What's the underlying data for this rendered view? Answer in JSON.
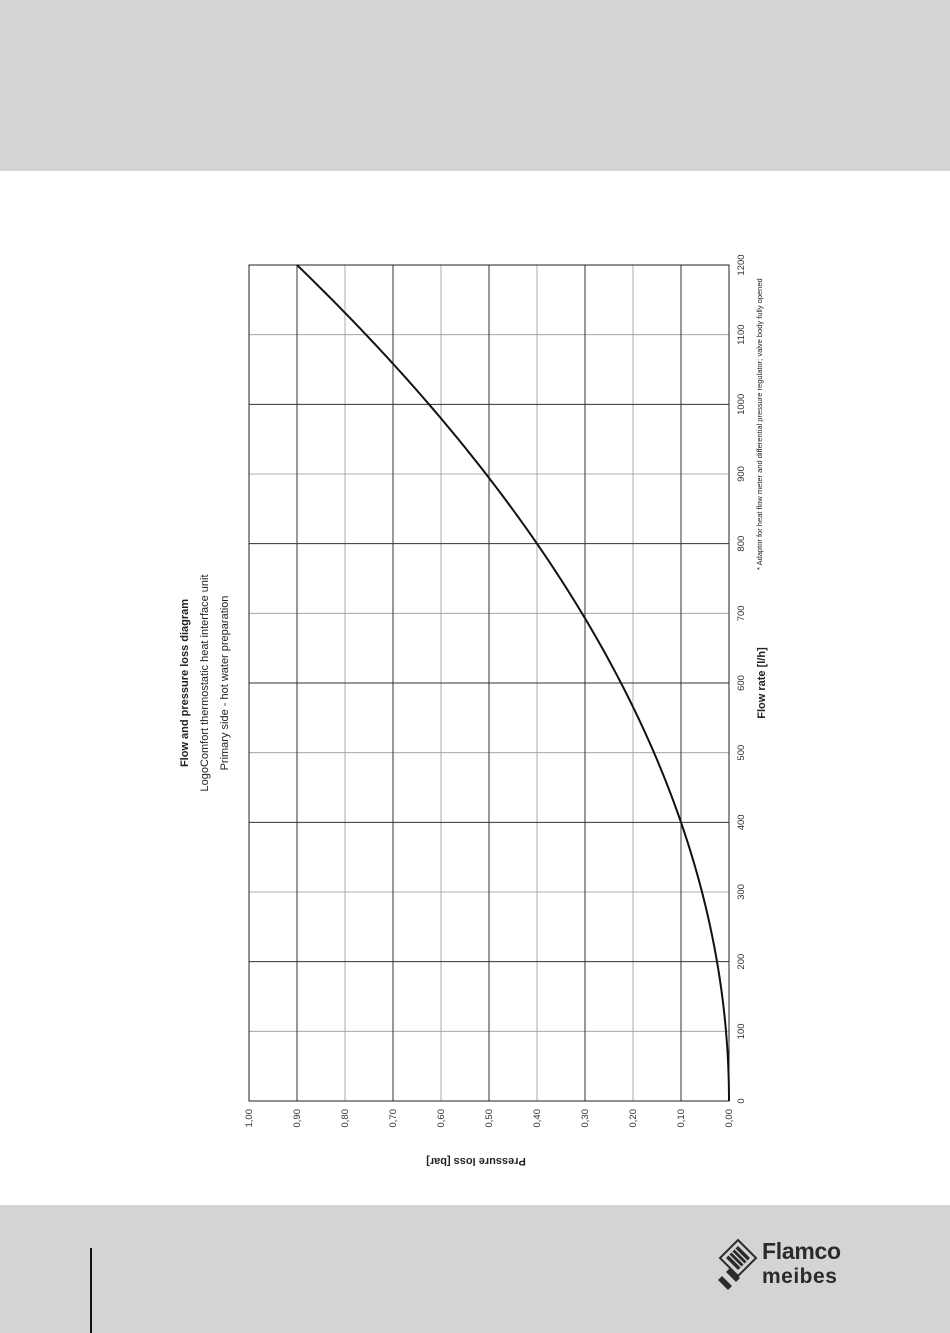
{
  "chart_data": {
    "type": "line",
    "title": "Flow and pressure loss diagram",
    "subtitle_lines": [
      "LogoComfort thermostatic heat interface unit",
      "Primary side - hot water preparation"
    ],
    "xlabel": "Flow rate [l/h]",
    "ylabel": "Pressure loss [bar]",
    "xlim": [
      0,
      1200
    ],
    "ylim": [
      0,
      1.0
    ],
    "x_ticks": [
      "0",
      "100",
      "200",
      "300",
      "400",
      "500",
      "600",
      "700",
      "800",
      "900",
      "1000",
      "1100",
      "1200"
    ],
    "y_ticks": [
      "0,00",
      "0,10",
      "0,20",
      "0,30",
      "0,40",
      "0,50",
      "0,60",
      "0,70",
      "0,80",
      "0,90",
      "1,00"
    ],
    "grid": true,
    "orientation": "rotated-90-counterclockwise",
    "footnote": "* Adaptor for heat flow meter and differential pressure regulator; valve body fully opened",
    "series": [
      {
        "x": [
          0,
          100,
          200,
          300,
          400,
          500,
          600,
          700,
          800,
          900,
          1000,
          1100,
          1200
        ],
        "y": [
          0.0,
          0.006,
          0.025,
          0.056,
          0.1,
          0.156,
          0.225,
          0.306,
          0.4,
          0.506,
          0.625,
          0.756,
          0.9
        ]
      }
    ]
  },
  "footer": {
    "logo_line1": "Flamco",
    "logo_line2": "meibes"
  }
}
